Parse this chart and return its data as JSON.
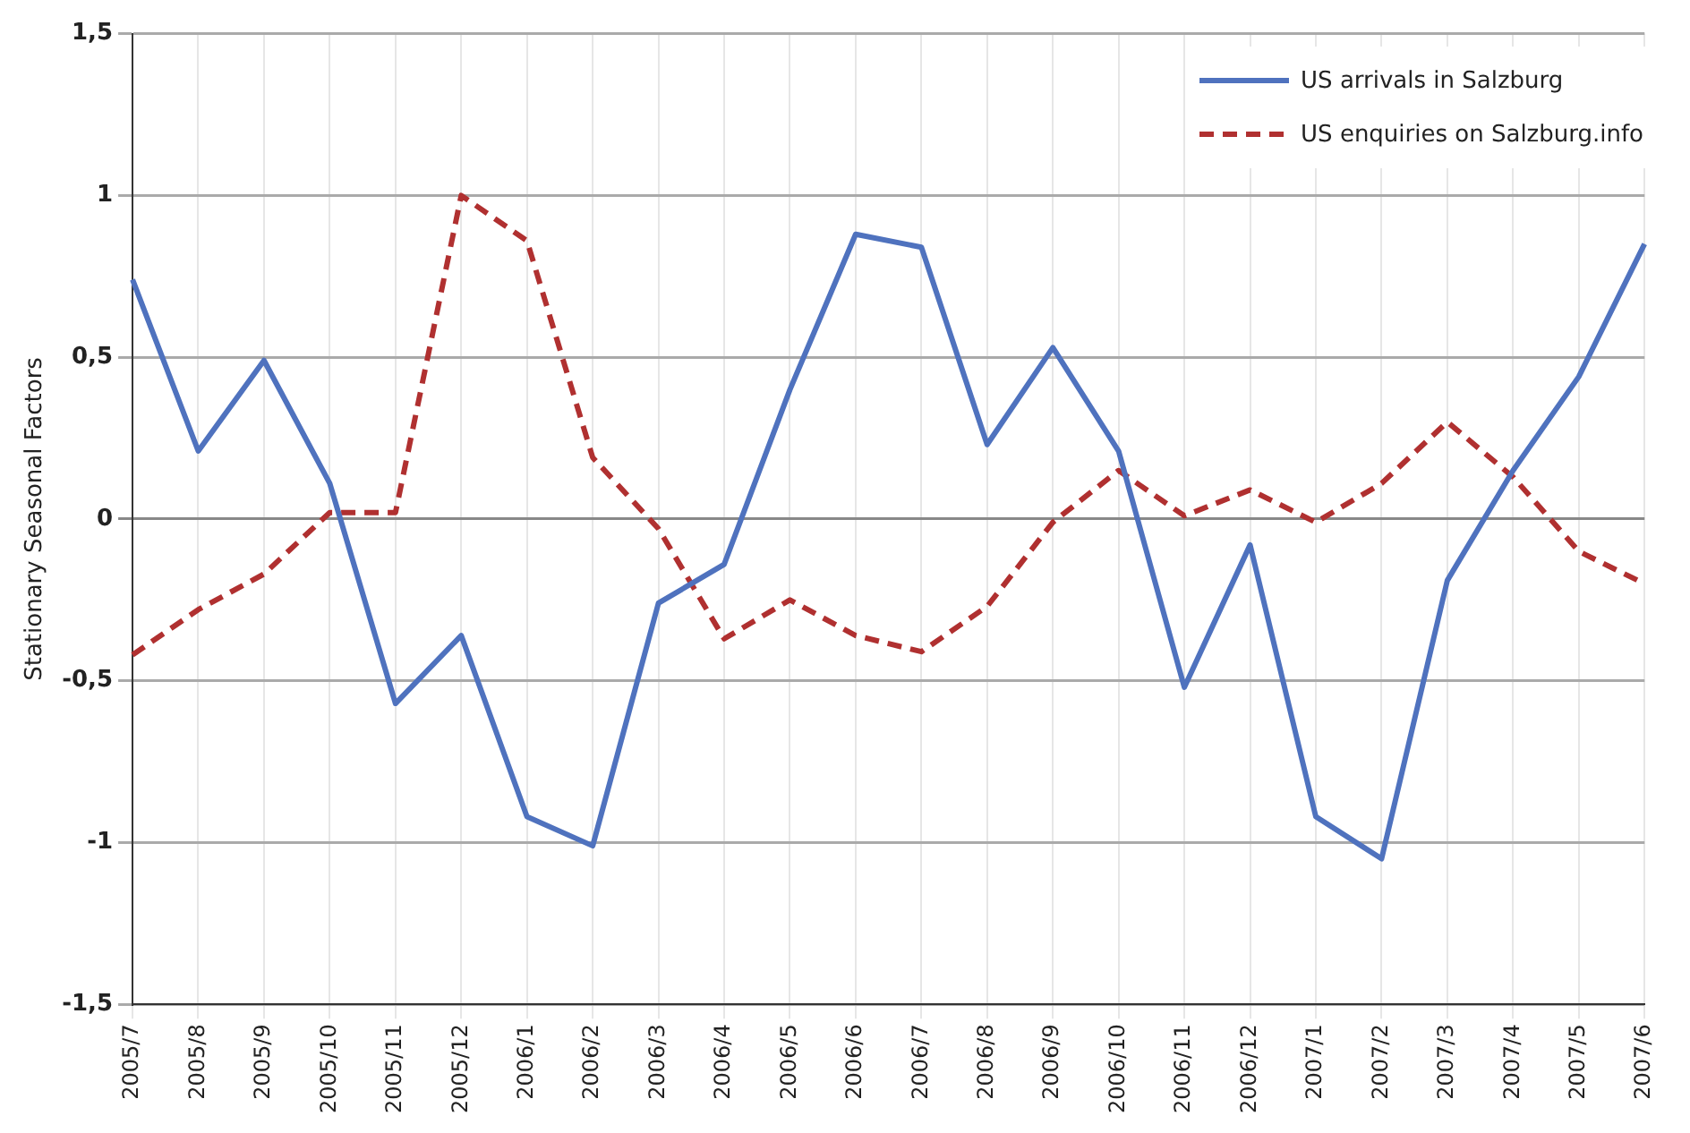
{
  "chart_data": {
    "type": "line",
    "ylabel": "Stationary Seasonal Factors",
    "categories": [
      "2005/7",
      "2005/8",
      "2005/9",
      "2005/10",
      "2005/11",
      "2005/12",
      "2006/1",
      "2006/2",
      "2006/3",
      "2006/4",
      "2006/5",
      "2006/6",
      "2006/7",
      "2006/8",
      "2006/9",
      "2006/10",
      "2006/11",
      "2006/12",
      "2007/1",
      "2007/2",
      "2007/3",
      "2007/4",
      "2007/5",
      "2007/6"
    ],
    "series": [
      {
        "name": "US arrivals in Salzburg",
        "color": "#4f72be",
        "line_style": "solid",
        "values": [
          0.74,
          0.21,
          0.49,
          0.11,
          -0.57,
          -0.36,
          -0.92,
          -1.01,
          -0.26,
          -0.14,
          0.4,
          0.88,
          0.84,
          0.23,
          0.53,
          0.21,
          -0.52,
          -0.08,
          -0.92,
          -1.05,
          -0.19,
          0.15,
          0.44,
          0.85
        ]
      },
      {
        "name": "US enquiries on Salzburg.info",
        "color": "#b03030",
        "line_style": "dashed",
        "values": [
          -0.42,
          -0.28,
          -0.17,
          0.02,
          0.02,
          1.0,
          0.86,
          0.19,
          -0.03,
          -0.37,
          -0.25,
          -0.36,
          -0.41,
          -0.27,
          -0.01,
          0.15,
          0.01,
          0.09,
          -0.01,
          0.11,
          0.3,
          0.13,
          -0.1,
          -0.2
        ]
      }
    ],
    "ylim": [
      -1.5,
      1.5
    ],
    "yticks": [
      {
        "value": -1.5,
        "label": "-1,5"
      },
      {
        "value": -1,
        "label": "-1"
      },
      {
        "value": -0.5,
        "label": "-0,5"
      },
      0,
      {
        "value": 0.5,
        "label": "0,5"
      },
      1,
      {
        "value": 1.5,
        "label": "1,5"
      }
    ],
    "grid": true,
    "legend": "top right",
    "marker": "none"
  }
}
